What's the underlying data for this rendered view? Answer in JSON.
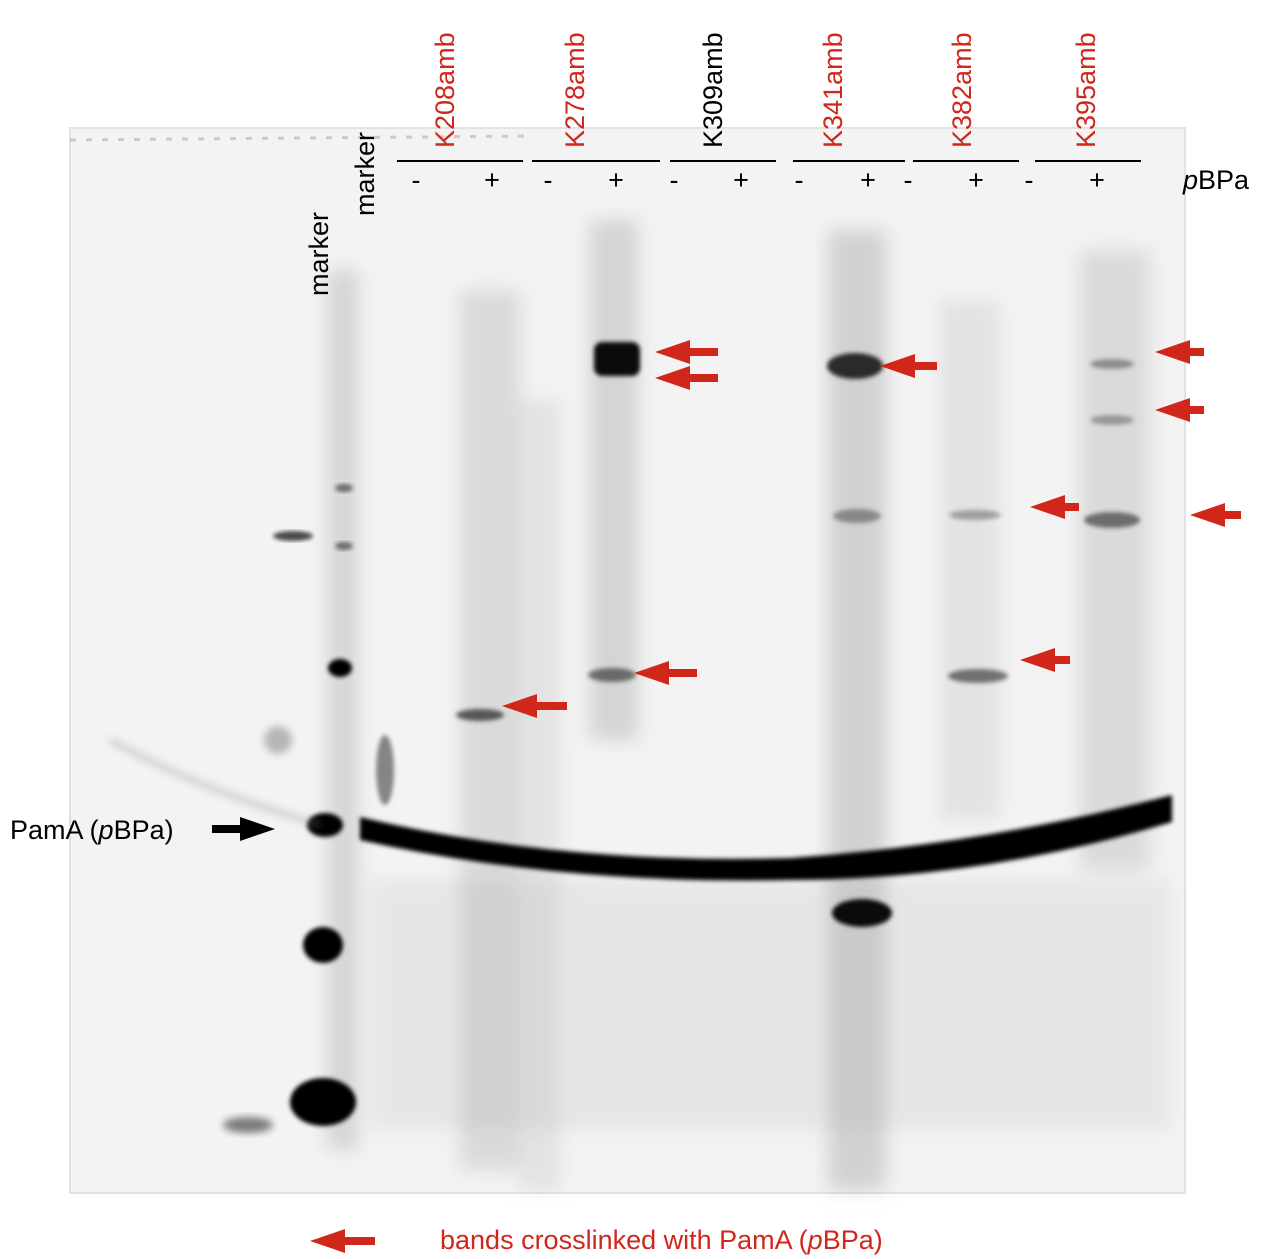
{
  "colors": {
    "accent_red": "#d1261a",
    "text_black": "#000000",
    "gel_background": "#f2f2f2",
    "band": "#000000"
  },
  "marker_labels": [
    "marker",
    "marker"
  ],
  "samples": [
    {
      "label": "K208amb",
      "color": "#d1261a",
      "signs": [
        "-",
        "+"
      ]
    },
    {
      "label": "K278amb",
      "color": "#d1261a",
      "signs": [
        "-",
        "+"
      ]
    },
    {
      "label": "K309amb",
      "color": "#000000",
      "signs": [
        "-",
        "+"
      ]
    },
    {
      "label": "K341amb",
      "color": "#d1261a",
      "signs": [
        "-",
        "+"
      ]
    },
    {
      "label": "K382amb",
      "color": "#d1261a",
      "signs": [
        "-",
        "+"
      ]
    },
    {
      "label": "K395amb",
      "color": "#d1261a",
      "signs": [
        "-",
        "+"
      ]
    }
  ],
  "pbpa_label": {
    "italic": "p",
    "rest": "BPa"
  },
  "pama_label": {
    "prefix": "PamA (",
    "italic": "p",
    "suffix": "BPa)"
  },
  "legend": {
    "prefix": "bands crosslinked with PamA (",
    "italic": "p",
    "suffix": "BPa)"
  },
  "arrows": {
    "icon": "red-arrow-icon",
    "count": 11
  }
}
